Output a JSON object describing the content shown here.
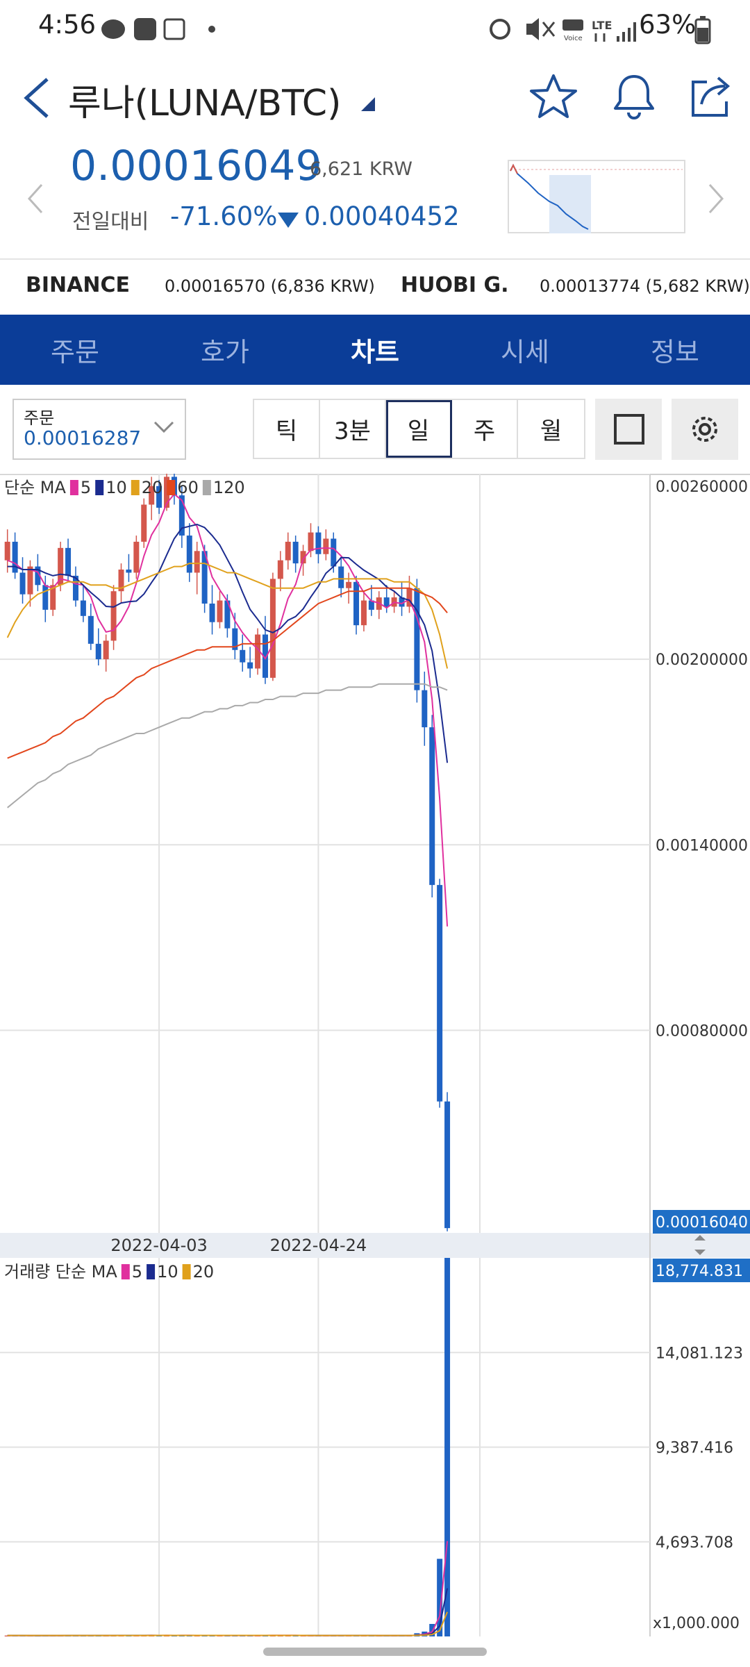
{
  "status_bar": {
    "time": "4:56",
    "battery": "63%"
  },
  "header": {
    "title": "루나(LUNA/BTC)"
  },
  "price": {
    "last": "0.00016049",
    "krw": "6,621 KRW",
    "change_label": "전일대비",
    "change_pct": "-71.60%",
    "change_abs": "0.00040452"
  },
  "exchanges": [
    {
      "name": "BINANCE",
      "quote": "0.00016570 (6,836 KRW)"
    },
    {
      "name": "HUOBI G.",
      "quote": "0.00013774 (5,682 KRW)"
    }
  ],
  "tabs": [
    {
      "label": "주문"
    },
    {
      "label": "호가"
    },
    {
      "label": "차트",
      "active": true
    },
    {
      "label": "시세"
    },
    {
      "label": "정보"
    }
  ],
  "toolbar": {
    "order_label": "주문",
    "order_price": "0.00016287",
    "periods": [
      {
        "label": "틱"
      },
      {
        "label": "3분"
      },
      {
        "label": "일",
        "selected": true
      },
      {
        "label": "주"
      },
      {
        "label": "월"
      }
    ]
  },
  "chart_data": [
    {
      "type": "candlestick",
      "legend_title": "단순 MA",
      "up_color": "#d4574c",
      "down_color": "#1f63c4",
      "categories": [
        null,
        null,
        null,
        null,
        null,
        null,
        null,
        null,
        null,
        null,
        null,
        null,
        null,
        null,
        null,
        null,
        null,
        null,
        null,
        null,
        "2022-04-03",
        null,
        null,
        null,
        null,
        null,
        null,
        null,
        null,
        null,
        null,
        null,
        null,
        null,
        null,
        null,
        null,
        null,
        null,
        null,
        null,
        "2022-04-24",
        null,
        null,
        null,
        null,
        null,
        null,
        null,
        null,
        null,
        null,
        null,
        null,
        null,
        null,
        null,
        null,
        null
      ],
      "open": [
        0.00232,
        0.00238,
        0.00228,
        0.00221,
        0.0023,
        0.00224,
        0.00216,
        0.00224,
        0.00236,
        0.00227,
        0.00219,
        0.00214,
        0.00205,
        0.002,
        0.00206,
        0.00222,
        0.00229,
        0.00228,
        0.00238,
        0.0025,
        0.00256,
        0.00249,
        0.00259,
        0.00253,
        0.0024,
        0.00228,
        0.00235,
        0.00218,
        0.00212,
        0.00219,
        0.0021,
        0.00203,
        0.00199,
        0.00197,
        0.00208,
        0.00194,
        0.00226,
        0.00232,
        0.00238,
        0.00231,
        0.00235,
        0.00241,
        0.00234,
        0.00239,
        0.0023,
        0.00223,
        0.00225,
        0.00211,
        0.00219,
        0.00216,
        0.0022,
        0.00217,
        0.0022,
        0.00217,
        0.00223,
        0.0019,
        0.00178,
        0.00127,
        0.00057
      ],
      "high": [
        0.00242,
        0.00241,
        0.00233,
        0.00232,
        0.00234,
        0.00227,
        0.00226,
        0.00238,
        0.00239,
        0.0023,
        0.00224,
        0.00218,
        0.0021,
        0.00208,
        0.00224,
        0.00231,
        0.00234,
        0.0024,
        0.00252,
        0.00259,
        0.00258,
        0.0026,
        0.0026,
        0.00256,
        0.00244,
        0.00238,
        0.00237,
        0.00224,
        0.00222,
        0.00221,
        0.00215,
        0.00208,
        0.00204,
        0.0021,
        0.00214,
        0.00228,
        0.00235,
        0.00241,
        0.0024,
        0.00237,
        0.00244,
        0.00243,
        0.00242,
        0.00241,
        0.00233,
        0.00228,
        0.00227,
        0.00222,
        0.00224,
        0.00222,
        0.00224,
        0.00222,
        0.00225,
        0.00227,
        0.00226,
        0.00196,
        0.00182,
        0.00129,
        0.0006
      ],
      "low": [
        0.00228,
        0.00226,
        0.00218,
        0.00217,
        0.00222,
        0.00212,
        0.00214,
        0.00222,
        0.00225,
        0.00217,
        0.00212,
        0.00203,
        0.00198,
        0.00196,
        0.00203,
        0.00218,
        0.00225,
        0.00226,
        0.00236,
        0.00245,
        0.00247,
        0.00248,
        0.0025,
        0.00236,
        0.00225,
        0.00221,
        0.00215,
        0.00208,
        0.0021,
        0.00207,
        0.002,
        0.00196,
        0.00194,
        0.00195,
        0.00192,
        0.00193,
        0.00222,
        0.00229,
        0.00228,
        0.00227,
        0.00233,
        0.00231,
        0.00232,
        0.00228,
        0.0022,
        0.00218,
        0.00208,
        0.00209,
        0.00214,
        0.00213,
        0.00215,
        0.00215,
        0.00214,
        0.00215,
        0.00186,
        0.00172,
        0.00123,
        0.00055,
        0.00015
      ],
      "close": [
        0.00238,
        0.00228,
        0.00221,
        0.0023,
        0.00224,
        0.00216,
        0.00224,
        0.00236,
        0.00227,
        0.00219,
        0.00214,
        0.00205,
        0.002,
        0.00206,
        0.00222,
        0.00229,
        0.00228,
        0.00238,
        0.0025,
        0.00256,
        0.00249,
        0.00259,
        0.00253,
        0.0024,
        0.00228,
        0.00235,
        0.00218,
        0.00212,
        0.00219,
        0.0021,
        0.00203,
        0.00199,
        0.00197,
        0.00208,
        0.00194,
        0.00226,
        0.00232,
        0.00238,
        0.00231,
        0.00235,
        0.00241,
        0.00234,
        0.00239,
        0.0023,
        0.00223,
        0.00225,
        0.00211,
        0.00219,
        0.00216,
        0.0022,
        0.00217,
        0.0022,
        0.00217,
        0.00223,
        0.0019,
        0.00178,
        0.00127,
        0.00057,
        0.0001604
      ],
      "last_label": "0.00016040",
      "series": [
        {
          "name": "5",
          "color": "#e0309e",
          "values": [
            0.00232,
            0.00231,
            0.00229,
            0.00229,
            0.002282,
            0.002238,
            0.00223,
            0.00226,
            0.002254,
            0.002244,
            0.00224,
            0.002202,
            0.00213,
            0.002088,
            0.002094,
            0.002124,
            0.00217,
            0.002246,
            0.002334,
            0.002402,
            0.002442,
            0.002504,
            0.002534,
            0.002514,
            0.002458,
            0.00243,
            0.002348,
            0.002266,
            0.002224,
            0.002188,
            0.002124,
            0.002086,
            0.002056,
            0.002034,
            0.002002,
            0.002048,
            0.002114,
            0.002196,
            0.002242,
            0.002324,
            0.002354,
            0.002358,
            0.00236,
            0.002358,
            0.002334,
            0.002302,
            0.002256,
            0.002216,
            0.002188,
            0.002182,
            0.002166,
            0.002184,
            0.00218,
            0.002194,
            0.002134,
            0.002056,
            0.00187,
            0.00155,
            0.001136
          ]
        },
        {
          "name": "10",
          "color": "#1b2b8f",
          "values": [
            0.0023,
            0.0023,
            0.00229,
            0.00229,
            0.00229,
            0.002279,
            0.00227,
            0.002275,
            0.002272,
            0.002263,
            0.002239,
            0.002216,
            0.002195,
            0.002171,
            0.002169,
            0.002182,
            0.002186,
            0.002188,
            0.002211,
            0.002248,
            0.002283,
            0.002337,
            0.00239,
            0.002424,
            0.00243,
            0.002436,
            0.002426,
            0.0024,
            0.002369,
            0.002323,
            0.002277,
            0.002217,
            0.002161,
            0.002129,
            0.002095,
            0.002086,
            0.0021,
            0.002126,
            0.002138,
            0.002163,
            0.002201,
            0.002236,
            0.002278,
            0.0023,
            0.002329,
            0.002328,
            0.002307,
            0.002288,
            0.002273,
            0.002258,
            0.002234,
            0.00222,
            0.002198,
            0.002191,
            0.002158,
            0.002111,
            0.002027,
            0.001865,
            0.001665
          ]
        },
        {
          "name": "20",
          "color": "#e0a11c",
          "values": [
            0.00207,
            0.00212,
            0.00216,
            0.00219,
            0.00221,
            0.00222,
            0.00223,
            0.00224,
            0.00225,
            0.00225,
            0.00225,
            0.00224,
            0.00224,
            0.00224,
            0.00223,
            0.00223,
            0.00224,
            0.00225,
            0.00226,
            0.00227,
            0.00228,
            0.00229,
            0.0023,
            0.0023,
            0.00231,
            0.00231,
            0.00231,
            0.0023,
            0.00229,
            0.00228,
            0.00228,
            0.00227,
            0.00226,
            0.00225,
            0.00224,
            0.00223,
            0.00223,
            0.00223,
            0.00223,
            0.00223,
            0.00224,
            0.00225,
            0.00225,
            0.00226,
            0.00226,
            0.00226,
            0.00226,
            0.00226,
            0.00226,
            0.00226,
            0.00226,
            0.00225,
            0.00225,
            0.00225,
            0.00223,
            0.00221,
            0.00216,
            0.00208,
            0.00197
          ]
        },
        {
          "name": "60",
          "color": "#e2461c",
          "values": [
            0.00168,
            0.00169,
            0.0017,
            0.00171,
            0.00172,
            0.00173,
            0.00175,
            0.00176,
            0.00178,
            0.0018,
            0.00181,
            0.00183,
            0.00185,
            0.00187,
            0.00188,
            0.0019,
            0.00192,
            0.00194,
            0.00195,
            0.00197,
            0.00198,
            0.00199,
            0.002,
            0.00201,
            0.00202,
            0.00203,
            0.00203,
            0.00204,
            0.00204,
            0.00204,
            0.00204,
            0.00205,
            0.00205,
            0.00205,
            0.00205,
            0.00206,
            0.00208,
            0.0021,
            0.00212,
            0.00214,
            0.00216,
            0.00218,
            0.00219,
            0.0022,
            0.00221,
            0.00222,
            0.00222,
            0.00222,
            0.00223,
            0.00223,
            0.00223,
            0.00223,
            0.00223,
            0.00223,
            0.00222,
            0.00221,
            0.0022,
            0.00218,
            0.00215
          ]
        },
        {
          "name": "120",
          "color": "#a9a9a9",
          "values": [
            0.00152,
            0.00154,
            0.00156,
            0.00158,
            0.0016,
            0.00161,
            0.00163,
            0.00164,
            0.00166,
            0.00167,
            0.00168,
            0.00169,
            0.00171,
            0.00172,
            0.00173,
            0.00174,
            0.00175,
            0.00176,
            0.00176,
            0.00177,
            0.00178,
            0.00179,
            0.0018,
            0.00181,
            0.00181,
            0.00182,
            0.00183,
            0.00183,
            0.00184,
            0.00184,
            0.00185,
            0.00185,
            0.00186,
            0.00186,
            0.00187,
            0.00187,
            0.00188,
            0.00188,
            0.00188,
            0.00189,
            0.00189,
            0.00189,
            0.0019,
            0.0019,
            0.0019,
            0.00191,
            0.00191,
            0.00191,
            0.00191,
            0.00192,
            0.00192,
            0.00192,
            0.00192,
            0.00192,
            0.00192,
            0.00192,
            0.00191,
            0.00191,
            0.0019
          ]
        }
      ],
      "ylim": [
        0.000145,
        0.0026
      ],
      "yticks": [
        {
          "value": 0.0026,
          "label": "0.00260000"
        },
        {
          "value": 0.002,
          "label": "0.00200000"
        },
        {
          "value": 0.0014,
          "label": "0.00140000"
        },
        {
          "value": 0.0008,
          "label": "0.00080000"
        }
      ],
      "grid": true
    },
    {
      "type": "bar",
      "legend_title": "거래량 단순 MA",
      "values": [
        45,
        38,
        52,
        40,
        33,
        60,
        42,
        55,
        48,
        39,
        44,
        58,
        62,
        41,
        50,
        57,
        36,
        43,
        66,
        72,
        47,
        55,
        40,
        61,
        52,
        45,
        58,
        49,
        37,
        42,
        60,
        55,
        48,
        39,
        63,
        70,
        52,
        46,
        38,
        41,
        50,
        44,
        36,
        48,
        53,
        40,
        58,
        45,
        39,
        42,
        37,
        44,
        41,
        48,
        160,
        240,
        620,
        3850,
        18774.831
      ],
      "series": [
        {
          "name": "5",
          "color": "#e0309e",
          "values": [
            46,
            45,
            44,
            43,
            42,
            45,
            46,
            46,
            48,
            49,
            48,
            49,
            50,
            49,
            51,
            53,
            51,
            48,
            50,
            55,
            53,
            55,
            52,
            54,
            55,
            51,
            52,
            53,
            48,
            47,
            49,
            49,
            48,
            46,
            53,
            55,
            54,
            54,
            54,
            49,
            45,
            44,
            42,
            44,
            46,
            47,
            48,
            49,
            47,
            46,
            44,
            42,
            41,
            43,
            66,
            114,
            222,
            1000,
            4729
          ]
        },
        {
          "name": "10",
          "color": "#1b2b8f",
          "values": [
            47,
            47,
            47,
            46,
            46,
            46,
            46,
            46,
            47,
            47,
            48,
            48,
            49,
            49,
            49,
            50,
            50,
            50,
            50,
            51,
            51,
            51,
            51,
            51,
            52,
            52,
            52,
            52,
            51,
            50,
            50,
            50,
            50,
            50,
            50,
            50,
            50,
            50,
            50,
            50,
            49,
            49,
            48,
            48,
            48,
            47,
            47,
            47,
            47,
            46,
            46,
            45,
            45,
            45,
            59,
            79,
            139,
            519,
            2388
          ]
        },
        {
          "name": "20",
          "color": "#e0a11c",
          "values": [
            48,
            48,
            48,
            48,
            48,
            48,
            48,
            48,
            48,
            48,
            48,
            48,
            48,
            48,
            49,
            49,
            49,
            49,
            49,
            49,
            50,
            50,
            50,
            50,
            50,
            50,
            50,
            50,
            50,
            50,
            50,
            50,
            50,
            50,
            50,
            50,
            50,
            50,
            50,
            50,
            49,
            49,
            49,
            49,
            49,
            49,
            49,
            48,
            48,
            48,
            48,
            48,
            48,
            48,
            54,
            64,
            93,
            284,
            1216
          ]
        }
      ],
      "ylim": [
        0,
        18774.831
      ],
      "yticks": [
        {
          "value": 18774.831,
          "label": "18,774.831"
        },
        {
          "value": 14081.123,
          "label": "14,081.123"
        },
        {
          "value": 9387.416,
          "label": "9,387.416"
        },
        {
          "value": 4693.708,
          "label": "4,693.708"
        }
      ],
      "unit_label": "x1,000.000",
      "grid": true
    }
  ]
}
